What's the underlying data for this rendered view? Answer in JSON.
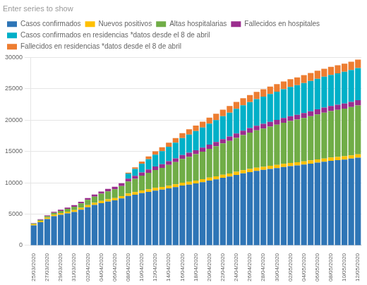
{
  "chart_data": {
    "type": "bar",
    "stacked": true,
    "subtitle": "Enter series to show",
    "legend": "top",
    "grid": true,
    "categories": [
      "25/03/2020",
      null,
      "27/03/2020",
      null,
      "29/03/2020",
      null,
      "31/03/2020",
      null,
      "02/04/2020",
      null,
      "04/04/2020",
      null,
      "06/04/2020",
      null,
      "08/04/2020",
      null,
      "10/04/2020",
      null,
      "12/04/2020",
      null,
      "14/04/2020",
      null,
      "16/04/2020",
      null,
      "18/04/2020",
      null,
      "20/04/2020",
      null,
      "22/04/2020",
      null,
      "24/04/2020",
      null,
      "26/04/2020",
      null,
      "28/04/2020",
      null,
      "30/04/2020",
      null,
      "02/05/2020",
      null,
      "04/05/2020",
      null,
      "06/05/2020",
      null,
      "08/05/2020",
      null,
      "10/05/2020",
      null,
      "12/05/2020"
    ],
    "ylim": [
      0,
      30000
    ],
    "yticks": [
      0,
      5000,
      10000,
      15000,
      20000,
      25000,
      30000
    ],
    "series": [
      {
        "name": "Casos confirmados",
        "color": "#2e75b6",
        "values": [
          3200,
          3700,
          4200,
          4650,
          4900,
          5100,
          5350,
          5700,
          6100,
          6450,
          6750,
          7000,
          7200,
          7500,
          7900,
          8100,
          8350,
          8550,
          8750,
          8900,
          9100,
          9300,
          9550,
          9700,
          9900,
          10100,
          10350,
          10550,
          10800,
          11000,
          11250,
          11500,
          11700,
          11900,
          12050,
          12200,
          12350,
          12500,
          12650,
          12750,
          12900,
          13050,
          13200,
          13350,
          13500,
          13600,
          13700,
          13850,
          14000
        ]
      },
      {
        "name": "Nuevos positivos",
        "color": "#ffc000",
        "values": [
          200,
          220,
          250,
          260,
          270,
          280,
          290,
          310,
          330,
          340,
          350,
          360,
          370,
          380,
          400,
          410,
          420,
          420,
          430,
          430,
          440,
          440,
          450,
          450,
          455,
          460,
          465,
          470,
          475,
          480,
          485,
          490,
          490,
          495,
          495,
          500,
          500,
          505,
          505,
          510,
          510,
          515,
          515,
          520,
          520,
          520,
          525,
          525,
          530
        ]
      },
      {
        "name": "Altas hospitalarias",
        "color": "#70ad47",
        "values": [
          100,
          150,
          200,
          280,
          350,
          450,
          550,
          700,
          850,
          1000,
          1150,
          1280,
          1400,
          1600,
          1900,
          2100,
          2350,
          2600,
          2850,
          3050,
          3300,
          3550,
          3800,
          4000,
          4200,
          4400,
          4600,
          4800,
          5000,
          5200,
          5400,
          5600,
          5800,
          5950,
          6100,
          6250,
          6400,
          6550,
          6680,
          6800,
          6920,
          7050,
          7180,
          7300,
          7400,
          7500,
          7600,
          7700,
          7800
        ]
      },
      {
        "name": "Fallecidos en hospitales",
        "color": "#9b2d8e",
        "values": [
          80,
          110,
          140,
          170,
          190,
          210,
          230,
          260,
          290,
          320,
          350,
          375,
          400,
          430,
          460,
          490,
          510,
          530,
          550,
          570,
          590,
          600,
          615,
          625,
          635,
          645,
          660,
          670,
          680,
          690,
          700,
          710,
          720,
          730,
          740,
          750,
          755,
          760,
          770,
          775,
          780,
          790,
          795,
          800,
          805,
          810,
          815,
          820,
          825
        ]
      },
      {
        "name": "Casos confirmados en residencias *datos desde el 8 de abril",
        "color": "#00b0c8",
        "values": [
          0,
          0,
          0,
          0,
          0,
          0,
          0,
          0,
          0,
          0,
          0,
          0,
          0,
          0,
          800,
          1100,
          1400,
          1650,
          1900,
          2100,
          2300,
          2500,
          2700,
          2900,
          3050,
          3200,
          3350,
          3500,
          3650,
          3800,
          3950,
          4050,
          4150,
          4250,
          4350,
          4450,
          4520,
          4600,
          4670,
          4720,
          4780,
          4830,
          4880,
          4920,
          4960,
          5000,
          5040,
          5080,
          5120
        ]
      },
      {
        "name": "Fallecidos en residencias *datos desde el 8 de abril",
        "color": "#ed7d31",
        "values": [
          0,
          0,
          0,
          0,
          0,
          0,
          0,
          0,
          0,
          0,
          0,
          0,
          0,
          0,
          150,
          250,
          350,
          440,
          530,
          600,
          670,
          730,
          790,
          840,
          880,
          920,
          960,
          1000,
          1030,
          1060,
          1090,
          1110,
          1130,
          1150,
          1170,
          1190,
          1205,
          1220,
          1235,
          1245,
          1255,
          1265,
          1275,
          1285,
          1295,
          1305,
          1315,
          1325,
          1340
        ]
      }
    ]
  }
}
